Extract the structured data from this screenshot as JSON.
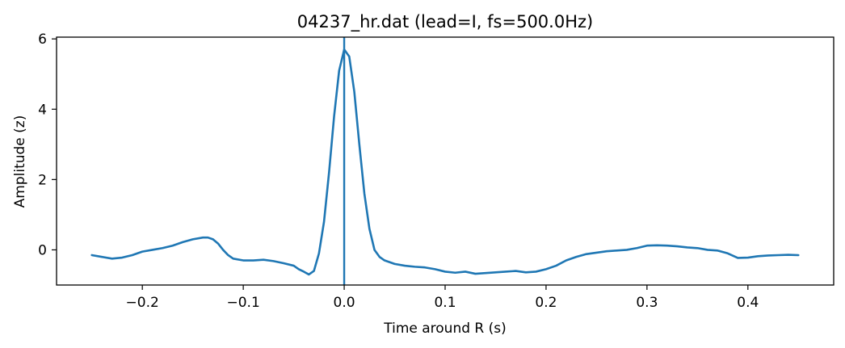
{
  "chart_data": {
    "type": "line",
    "title": "04237_hr.dat (lead=I, fs=500.0Hz)",
    "xlabel": "Time around R (s)",
    "ylabel": "Amplitude (z)",
    "xlim": [
      -0.285,
      0.485
    ],
    "ylim": [
      -1.0,
      6.05
    ],
    "xticks": [
      -0.2,
      -0.1,
      0.0,
      0.1,
      0.2,
      0.3,
      0.4
    ],
    "xtick_labels": [
      "−0.2",
      "−0.1",
      "0.0",
      "0.1",
      "0.2",
      "0.3",
      "0.4"
    ],
    "yticks": [
      0,
      2,
      4,
      6
    ],
    "ytick_labels": [
      "0",
      "2",
      "4",
      "6"
    ],
    "vline_x": 0.0,
    "grid": false,
    "line_color": "#1f77b4",
    "series": [
      {
        "x": [
          -0.25,
          -0.24,
          -0.23,
          -0.22,
          -0.21,
          -0.2,
          -0.19,
          -0.18,
          -0.17,
          -0.16,
          -0.15,
          -0.14,
          -0.135,
          -0.13,
          -0.125,
          -0.12,
          -0.115,
          -0.11,
          -0.1,
          -0.09,
          -0.08,
          -0.07,
          -0.06,
          -0.05,
          -0.045,
          -0.04,
          -0.035,
          -0.03,
          -0.025,
          -0.02,
          -0.015,
          -0.01,
          -0.005,
          0.0,
          0.005,
          0.01,
          0.015,
          0.02,
          0.025,
          0.03,
          0.035,
          0.04,
          0.05,
          0.06,
          0.07,
          0.08,
          0.09,
          0.1,
          0.11,
          0.12,
          0.13,
          0.14,
          0.15,
          0.16,
          0.17,
          0.18,
          0.19,
          0.2,
          0.21,
          0.22,
          0.23,
          0.24,
          0.25,
          0.26,
          0.27,
          0.28,
          0.29,
          0.3,
          0.31,
          0.32,
          0.33,
          0.34,
          0.35,
          0.36,
          0.37,
          0.38,
          0.39,
          0.4,
          0.41,
          0.42,
          0.43,
          0.44,
          0.45
        ],
        "y": [
          -0.15,
          -0.2,
          -0.25,
          -0.22,
          -0.15,
          -0.05,
          0.0,
          0.05,
          0.12,
          0.22,
          0.3,
          0.35,
          0.35,
          0.3,
          0.18,
          0.0,
          -0.15,
          -0.25,
          -0.3,
          -0.3,
          -0.28,
          -0.32,
          -0.38,
          -0.45,
          -0.55,
          -0.62,
          -0.7,
          -0.6,
          -0.1,
          0.8,
          2.2,
          3.8,
          5.1,
          5.7,
          5.5,
          4.5,
          3.0,
          1.6,
          0.6,
          0.0,
          -0.2,
          -0.3,
          -0.4,
          -0.45,
          -0.48,
          -0.5,
          -0.55,
          -0.62,
          -0.65,
          -0.62,
          -0.68,
          -0.66,
          -0.64,
          -0.62,
          -0.6,
          -0.64,
          -0.62,
          -0.55,
          -0.45,
          -0.3,
          -0.2,
          -0.12,
          -0.08,
          -0.04,
          -0.02,
          0.0,
          0.05,
          0.12,
          0.13,
          0.12,
          0.1,
          0.07,
          0.05,
          0.0,
          -0.02,
          -0.1,
          -0.23,
          -0.22,
          -0.18,
          -0.16,
          -0.15,
          -0.14,
          -0.15
        ]
      }
    ]
  }
}
